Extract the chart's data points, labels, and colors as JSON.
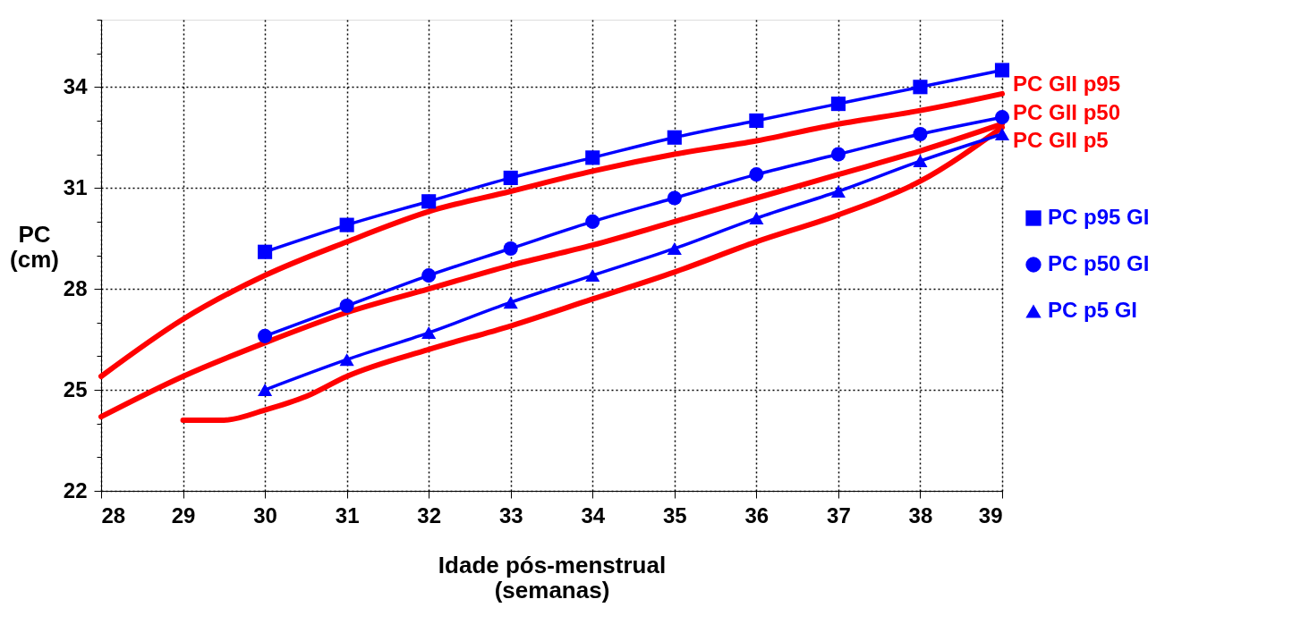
{
  "chart_data": {
    "type": "line",
    "xlabel": "Idade pós-menstrual\n(semanas)",
    "ylabel": "PC\n(cm)",
    "xlim": [
      28,
      39
    ],
    "xticks": [
      28,
      29,
      30,
      31,
      32,
      33,
      34,
      35,
      36,
      37,
      38,
      39
    ],
    "ylim": [
      22,
      36
    ],
    "yticks": [
      22,
      {
        "value": 23,
        "label": null
      },
      {
        "value": 24,
        "label": null
      },
      25,
      {
        "value": 26,
        "label": null
      },
      {
        "value": 27,
        "label": null
      },
      28,
      {
        "value": 29,
        "label": null
      },
      {
        "value": 30,
        "label": null
      },
      31,
      {
        "value": 32,
        "label": null
      },
      {
        "value": 33,
        "label": null
      },
      34,
      {
        "value": 35,
        "label": null
      },
      {
        "value": 36,
        "label": null
      }
    ],
    "grid": true,
    "legend": "right",
    "line_style": "solid",
    "series": [
      {
        "name": "PC GII p95",
        "color": "#ff0000",
        "marker": "none",
        "x": [
          28,
          29,
          30,
          31,
          32,
          33,
          34,
          35,
          36,
          37,
          38,
          39
        ],
        "values": [
          25.4,
          27.1,
          28.4,
          29.4,
          30.3,
          30.9,
          31.5,
          32.0,
          32.4,
          32.9,
          33.3,
          33.8
        ]
      },
      {
        "name": "PC GII p50",
        "color": "#ff0000",
        "marker": "none",
        "x": [
          28,
          29,
          30,
          31,
          32,
          33,
          34,
          35,
          36,
          37,
          38,
          39
        ],
        "values": [
          24.2,
          25.4,
          26.4,
          27.3,
          28.0,
          28.7,
          29.3,
          30.0,
          30.7,
          31.4,
          32.1,
          32.9
        ]
      },
      {
        "name": "PC GII p5",
        "color": "#ff0000",
        "marker": "none",
        "x": [
          29,
          29.5,
          30,
          30.5,
          31,
          32,
          33,
          34,
          35,
          36,
          37,
          38,
          39
        ],
        "values": [
          24.1,
          24.1,
          24.4,
          24.8,
          25.4,
          26.2,
          26.9,
          27.7,
          28.5,
          29.4,
          30.2,
          31.2,
          32.8
        ]
      },
      {
        "name": "PC p95 GI",
        "color": "#0000ff",
        "marker": "square",
        "x": [
          30,
          31,
          32,
          33,
          34,
          35,
          36,
          37,
          38,
          39
        ],
        "values": [
          29.1,
          29.9,
          30.6,
          31.3,
          31.9,
          32.5,
          33.0,
          33.5,
          34.0,
          34.5
        ]
      },
      {
        "name": "PC p50 GI",
        "color": "#0000ff",
        "marker": "circle",
        "x": [
          30,
          31,
          32,
          33,
          34,
          35,
          36,
          37,
          38,
          39
        ],
        "values": [
          26.6,
          27.5,
          28.4,
          29.2,
          30.0,
          30.7,
          31.4,
          32.0,
          32.6,
          33.1
        ]
      },
      {
        "name": "PC p5 GI",
        "color": "#0000ff",
        "marker": "triangle",
        "x": [
          30,
          31,
          32,
          33,
          34,
          35,
          36,
          37,
          38,
          39
        ],
        "values": [
          25.0,
          25.9,
          26.7,
          27.6,
          28.4,
          29.2,
          30.1,
          30.9,
          31.8,
          32.6
        ]
      }
    ]
  }
}
